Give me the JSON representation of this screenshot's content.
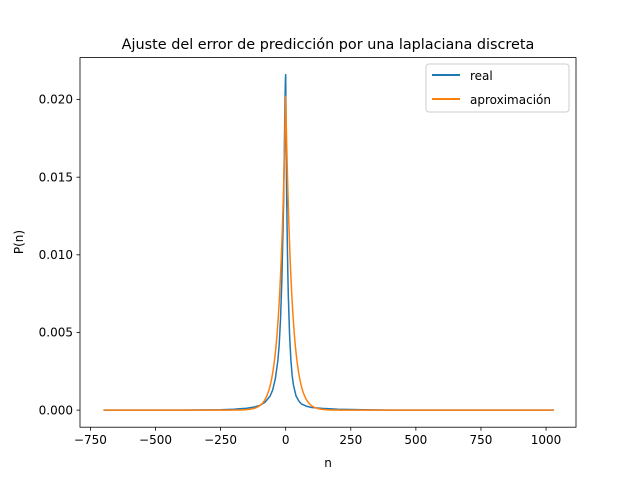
{
  "chart_data": {
    "type": "line",
    "title": "Ajuste del error de predicción por una laplaciana discreta",
    "xlabel": "n",
    "ylabel": "P(n)",
    "xlim": [
      -790,
      1115
    ],
    "ylim": [
      -0.0011,
      0.0227
    ],
    "xticks": [
      -750,
      -500,
      -250,
      0,
      250,
      500,
      750,
      1000
    ],
    "xtick_labels": [
      "−750",
      "−500",
      "−250",
      "0",
      "250",
      "500",
      "750",
      "1000"
    ],
    "yticks": [
      0.0,
      0.005,
      0.01,
      0.015,
      0.02
    ],
    "ytick_labels": [
      "0.000",
      "0.005",
      "0.010",
      "0.015",
      "0.020"
    ],
    "grid": false,
    "legend_position": "top-right",
    "series": [
      {
        "name": "real",
        "color": "#1f77b4",
        "x": [
          -700,
          -400,
          -250,
          -200,
          -150,
          -120,
          -100,
          -80,
          -60,
          -50,
          -40,
          -30,
          -25,
          -20,
          -15,
          -10,
          -8,
          -6,
          -4,
          -2,
          -1,
          0,
          1,
          2,
          4,
          6,
          8,
          10,
          15,
          20,
          25,
          30,
          40,
          50,
          60,
          80,
          100,
          150,
          200,
          300,
          400,
          600,
          800,
          1030
        ],
        "y": [
          0.0,
          0.0,
          2e-05,
          6e-05,
          0.00012,
          0.0002,
          0.0003,
          0.0005,
          0.0009,
          0.0013,
          0.002,
          0.0032,
          0.0042,
          0.0058,
          0.0082,
          0.0118,
          0.0135,
          0.0158,
          0.0182,
          0.0205,
          0.0213,
          0.0216,
          0.0195,
          0.0168,
          0.0135,
          0.011,
          0.009,
          0.0074,
          0.0048,
          0.0032,
          0.0022,
          0.0016,
          0.0009,
          0.0006,
          0.0004,
          0.00025,
          0.00017,
          0.0001,
          6e-05,
          2e-05,
          0.0,
          0.0,
          0.0,
          0.0
        ]
      },
      {
        "name": "aproximación",
        "color": "#ff7f0e",
        "x": [
          -700,
          1030
        ],
        "y": [
          0.0,
          0.0
        ]
      }
    ],
    "laplacian_fit": {
      "peak": 0.0202,
      "lambda": 0.0427,
      "center": 0
    }
  }
}
